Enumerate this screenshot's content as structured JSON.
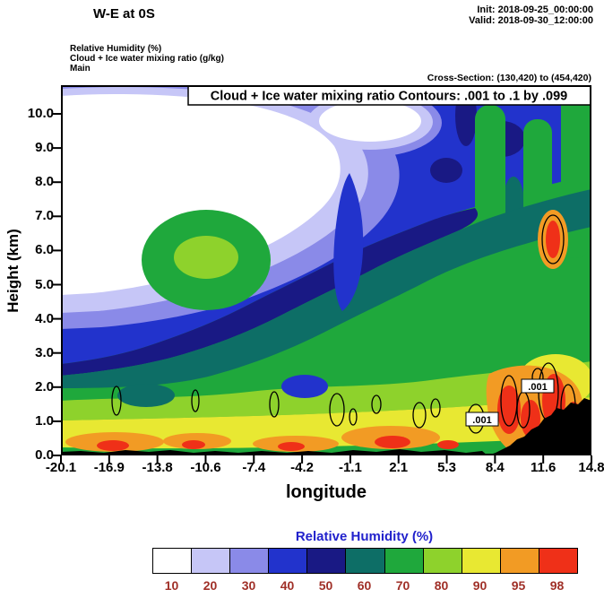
{
  "header": {
    "title": "W-E at 0S",
    "init_label": "Init: 2018-09-25_00:00:00",
    "valid_label": "Valid: 2018-09-30_12:00:00",
    "field_line1": "Relative Humidity (%)",
    "field_line2": "Cloud + Ice water mixing ratio (g/kg)",
    "field_line3": "Main",
    "cross_section_label": "Cross-Section: (130,420) to (454,420)"
  },
  "plot": {
    "contour_info": "Cloud + Ice water mixing ratio Contours: .001 to .1 by .099",
    "contour_label": ".001",
    "xlabel": "longitude",
    "ylabel": "Height (km)"
  },
  "axes": {
    "y_ticks": [
      "0.0",
      "1.0",
      "2.0",
      "3.0",
      "4.0",
      "5.0",
      "6.0",
      "7.0",
      "8.0",
      "9.0",
      "10.0"
    ],
    "x_ticks": [
      "-20.1",
      "-16.9",
      "-13.8",
      "-10.6",
      "-7.4",
      "-4.2",
      "-1.1",
      "2.1",
      "5.3",
      "8.4",
      "11.6",
      "14.8"
    ]
  },
  "colorbar": {
    "title": "Relative Humidity (%)",
    "title_color": "#2222cc",
    "label_color": "#a03028",
    "labels": [
      "10",
      "20",
      "30",
      "40",
      "50",
      "60",
      "70",
      "80",
      "90",
      "95",
      "98"
    ],
    "colors": [
      "#ffffff",
      "#c6c6f7",
      "#8a8ae8",
      "#2233cc",
      "#191984",
      "#0d6e66",
      "#1fa83c",
      "#8ed22c",
      "#e8e832",
      "#f29b24",
      "#ef3018"
    ]
  },
  "terrain_color": "#000000",
  "chart_data": {
    "type": "heatmap",
    "title": "W-E at 0S",
    "fill_variable": "Relative Humidity (%)",
    "overlay_variable": "Cloud + Ice water mixing ratio (g/kg)",
    "overlay_contour_levels": {
      "start": 0.001,
      "end": 0.1,
      "step": 0.099
    },
    "overlay_contour_label": ".001",
    "xlabel": "longitude",
    "ylabel": "Height (km)",
    "xlim": [
      -20.1,
      14.8
    ],
    "ylim": [
      0,
      10.8
    ],
    "x_ticks": [
      -20.1,
      -16.9,
      -13.8,
      -10.6,
      -7.4,
      -4.2,
      -1.1,
      2.1,
      5.3,
      8.4,
      11.6,
      14.8
    ],
    "y_ticks": [
      0,
      1,
      2,
      3,
      4,
      5,
      6,
      7,
      8,
      9,
      10
    ],
    "fill_levels": [
      10,
      20,
      30,
      40,
      50,
      60,
      70,
      80,
      90,
      95,
      98
    ],
    "fill_colors": [
      "#ffffff",
      "#c6c6f7",
      "#8a8ae8",
      "#2233cc",
      "#191984",
      "#0d6e66",
      "#1fa83c",
      "#8ed22c",
      "#e8e832",
      "#f29b24",
      "#ef3018"
    ],
    "legend_position": "bottom",
    "cross_section": "(130,420) to (454,420)",
    "init_time": "2018-09-25_00:00:00",
    "valid_time": "2018-09-30_12:00:00",
    "approximate": true,
    "approx_rh_grid": {
      "longitudes": [
        -20.1,
        -16.9,
        -13.8,
        -10.6,
        -7.4,
        -4.2,
        -1.1,
        2.1,
        5.3,
        8.4,
        11.6,
        14.8
      ],
      "heights_km": [
        0,
        1,
        2,
        3,
        4,
        5,
        6,
        7,
        8,
        9,
        10
      ],
      "values": [
        [
          90,
          95,
          90,
          92,
          88,
          90,
          90,
          92,
          95,
          98,
          98,
          95
        ],
        [
          85,
          88,
          82,
          85,
          80,
          82,
          85,
          85,
          90,
          95,
          98,
          88
        ],
        [
          62,
          65,
          60,
          65,
          65,
          65,
          70,
          75,
          80,
          85,
          92,
          78
        ],
        [
          45,
          55,
          52,
          55,
          55,
          58,
          60,
          65,
          70,
          72,
          75,
          70
        ],
        [
          28,
          45,
          55,
          55,
          50,
          50,
          55,
          60,
          65,
          65,
          70,
          70
        ],
        [
          20,
          30,
          55,
          65,
          50,
          45,
          50,
          60,
          65,
          65,
          75,
          70
        ],
        [
          15,
          25,
          55,
          60,
          55,
          45,
          50,
          55,
          65,
          65,
          95,
          70
        ],
        [
          10,
          15,
          40,
          45,
          45,
          45,
          45,
          50,
          65,
          60,
          65,
          65
        ],
        [
          5,
          5,
          20,
          40,
          40,
          40,
          45,
          45,
          60,
          55,
          60,
          65
        ],
        [
          5,
          5,
          15,
          30,
          30,
          40,
          40,
          45,
          60,
          50,
          60,
          65
        ],
        [
          5,
          5,
          10,
          25,
          30,
          35,
          35,
          40,
          55,
          45,
          55,
          60
        ]
      ]
    }
  }
}
